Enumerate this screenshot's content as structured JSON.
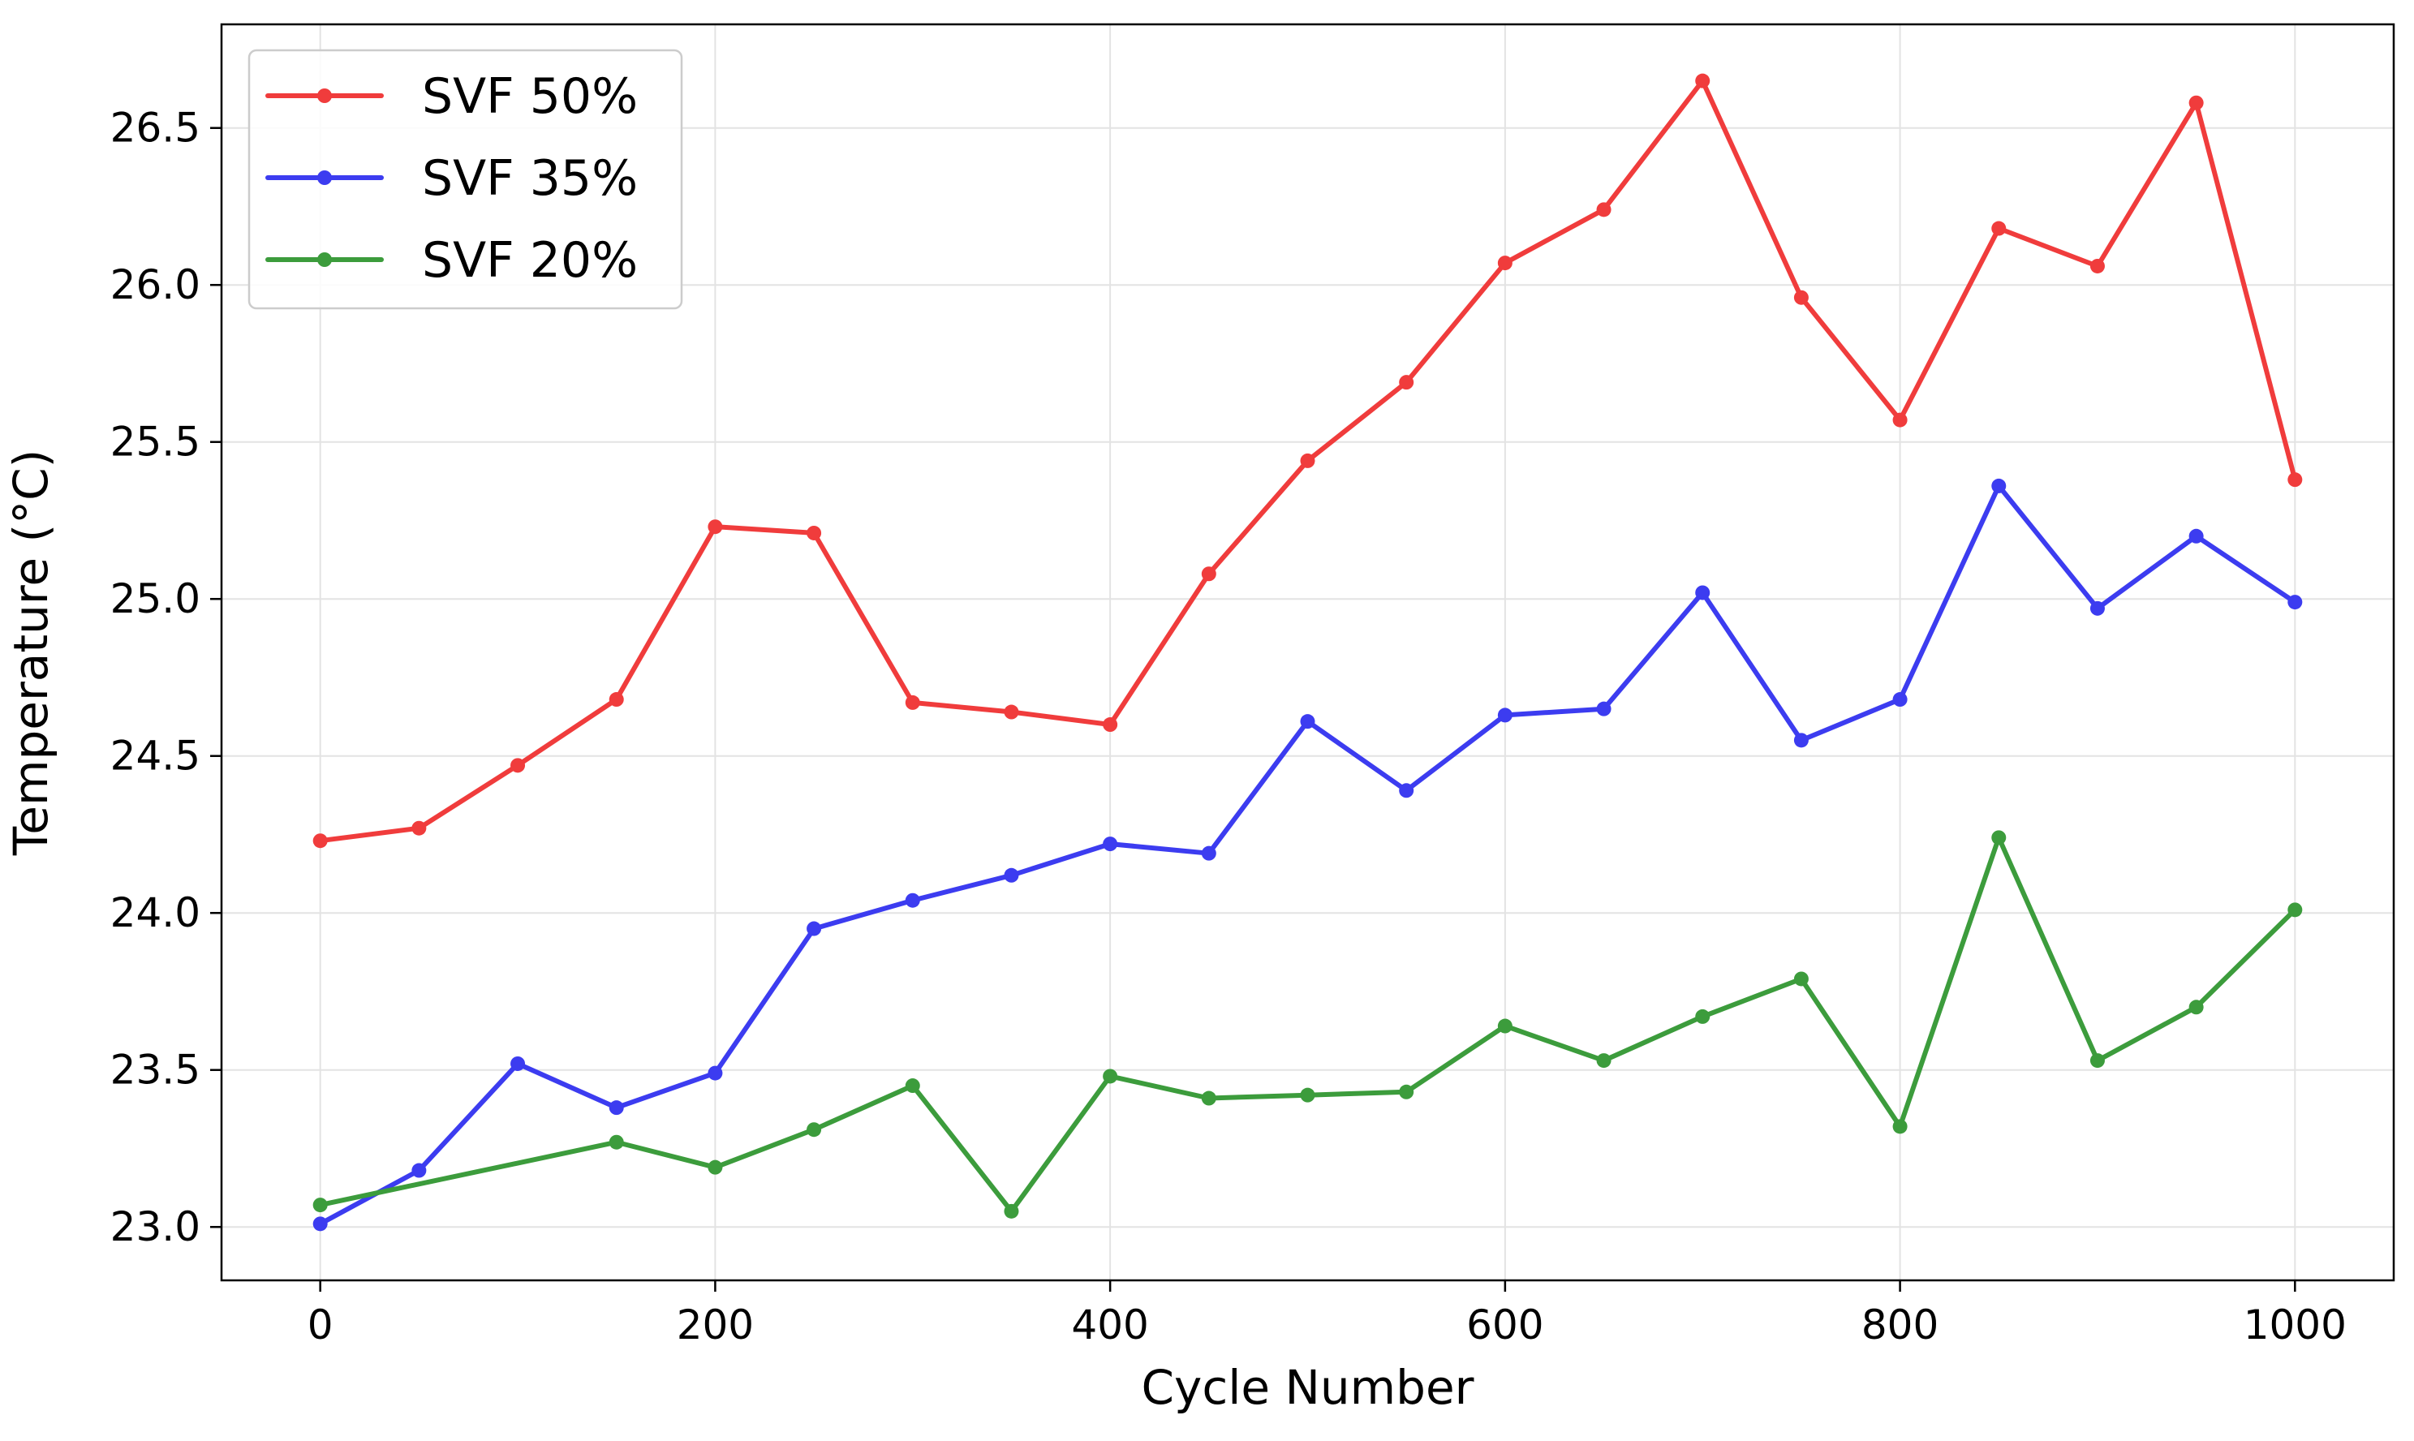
{
  "chart_data": {
    "type": "line",
    "title": "",
    "xlabel": "Cycle Number",
    "ylabel": "Temperature (°C)",
    "xlim": [
      -50,
      1050
    ],
    "ylim": [
      22.83,
      26.83
    ],
    "xticks": [
      0,
      200,
      400,
      600,
      800,
      1000
    ],
    "yticks": [
      23.0,
      23.5,
      24.0,
      24.5,
      25.0,
      25.5,
      26.0,
      26.5
    ],
    "ytick_labels": [
      "23.0",
      "23.5",
      "24.0",
      "24.5",
      "25.0",
      "25.5",
      "26.0",
      "26.5"
    ],
    "grid": true,
    "legend_position": "top-left",
    "series": [
      {
        "name": "SVF 50%",
        "color": "#f03c3c",
        "x": [
          0,
          50,
          100,
          150,
          200,
          250,
          300,
          350,
          400,
          450,
          500,
          550,
          600,
          650,
          700,
          750,
          800,
          850,
          900,
          950,
          1000
        ],
        "values": [
          24.23,
          24.27,
          24.47,
          24.68,
          25.23,
          25.21,
          24.67,
          24.64,
          24.6,
          25.08,
          25.44,
          25.69,
          26.07,
          26.24,
          26.65,
          25.96,
          25.57,
          26.18,
          26.06,
          26.58,
          25.38
        ]
      },
      {
        "name": "SVF 35%",
        "color": "#3c3cf0",
        "x": [
          0,
          50,
          100,
          150,
          200,
          250,
          300,
          350,
          400,
          450,
          500,
          550,
          600,
          650,
          700,
          750,
          800,
          850,
          900,
          950,
          1000
        ],
        "values": [
          23.01,
          23.18,
          23.52,
          23.38,
          23.49,
          23.95,
          24.04,
          24.12,
          24.22,
          24.19,
          24.61,
          24.39,
          24.63,
          24.65,
          25.02,
          24.55,
          24.68,
          25.36,
          24.97,
          25.2,
          24.99
        ]
      },
      {
        "name": "SVF 20%",
        "color": "#3c9c3c",
        "x": [
          0,
          150,
          200,
          250,
          300,
          350,
          400,
          450,
          500,
          550,
          600,
          650,
          700,
          750,
          800,
          850,
          900,
          950,
          1000
        ],
        "values": [
          23.07,
          23.27,
          23.19,
          23.31,
          23.45,
          23.05,
          23.48,
          23.41,
          23.42,
          23.43,
          23.64,
          23.53,
          23.67,
          23.79,
          23.32,
          24.24,
          23.53,
          23.7,
          24.01
        ]
      }
    ]
  }
}
